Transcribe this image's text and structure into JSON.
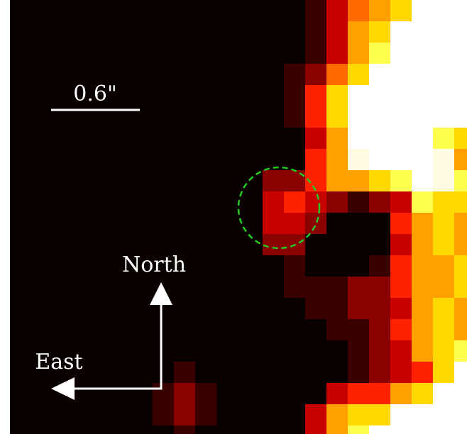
{
  "scale_bar": {
    "label": "0.6\""
  },
  "compass": {
    "north": "North",
    "east": "East"
  }
}
